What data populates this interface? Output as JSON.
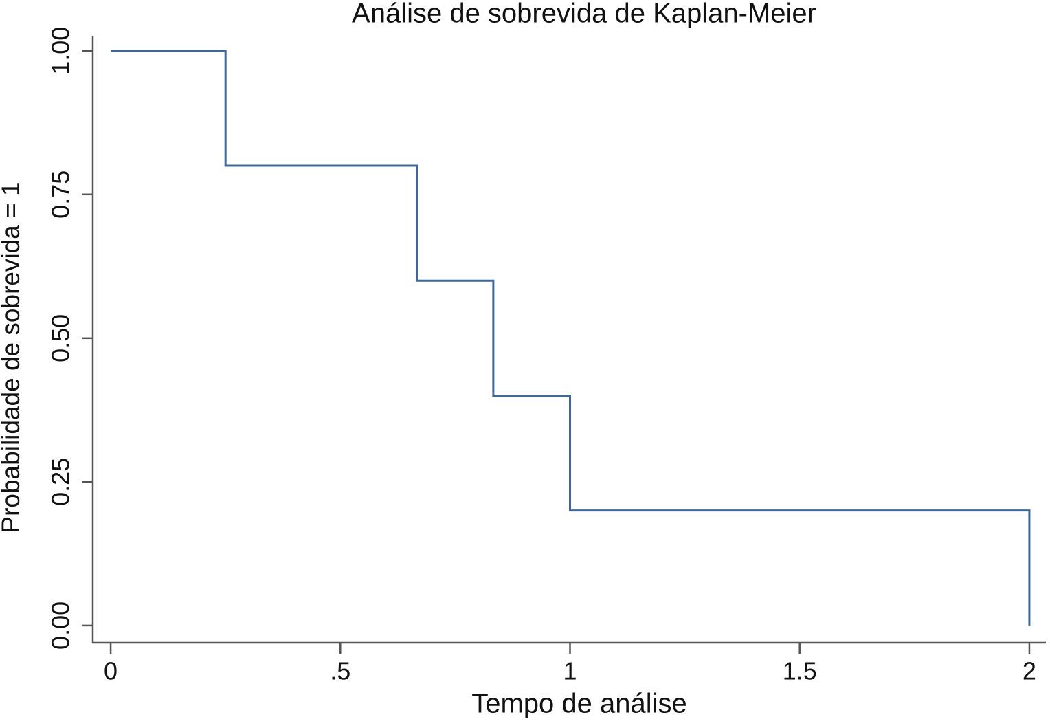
{
  "chart_data": {
    "type": "line",
    "step": "post",
    "title": "Análise de sobrevida de Kaplan-Meier",
    "x_label": "Tempo de análise",
    "y_label": "Probabilidade de sobrevida = 1",
    "series": [
      {
        "x": [
          0,
          0.25,
          0.667,
          0.833,
          1,
          2
        ],
        "values": [
          1,
          0.8,
          0.6,
          0.4,
          0.2,
          0
        ],
        "color": "#3f6896"
      }
    ],
    "xlim": [
      -0.039,
      2.036
    ],
    "ylim": [
      -0.03,
      1.026
    ],
    "xticks": [
      0,
      {
        "value": 0.5,
        "label": ".5"
      },
      1,
      1.5,
      2
    ],
    "yticks": [
      {
        "value": 0,
        "label": "0.00"
      },
      {
        "value": 0.25,
        "label": "0.25"
      },
      {
        "value": 0.5,
        "label": "0.50"
      },
      {
        "value": 0.75,
        "label": "0.75"
      },
      {
        "value": 1,
        "label": "1.00"
      }
    ],
    "grid": false
  }
}
